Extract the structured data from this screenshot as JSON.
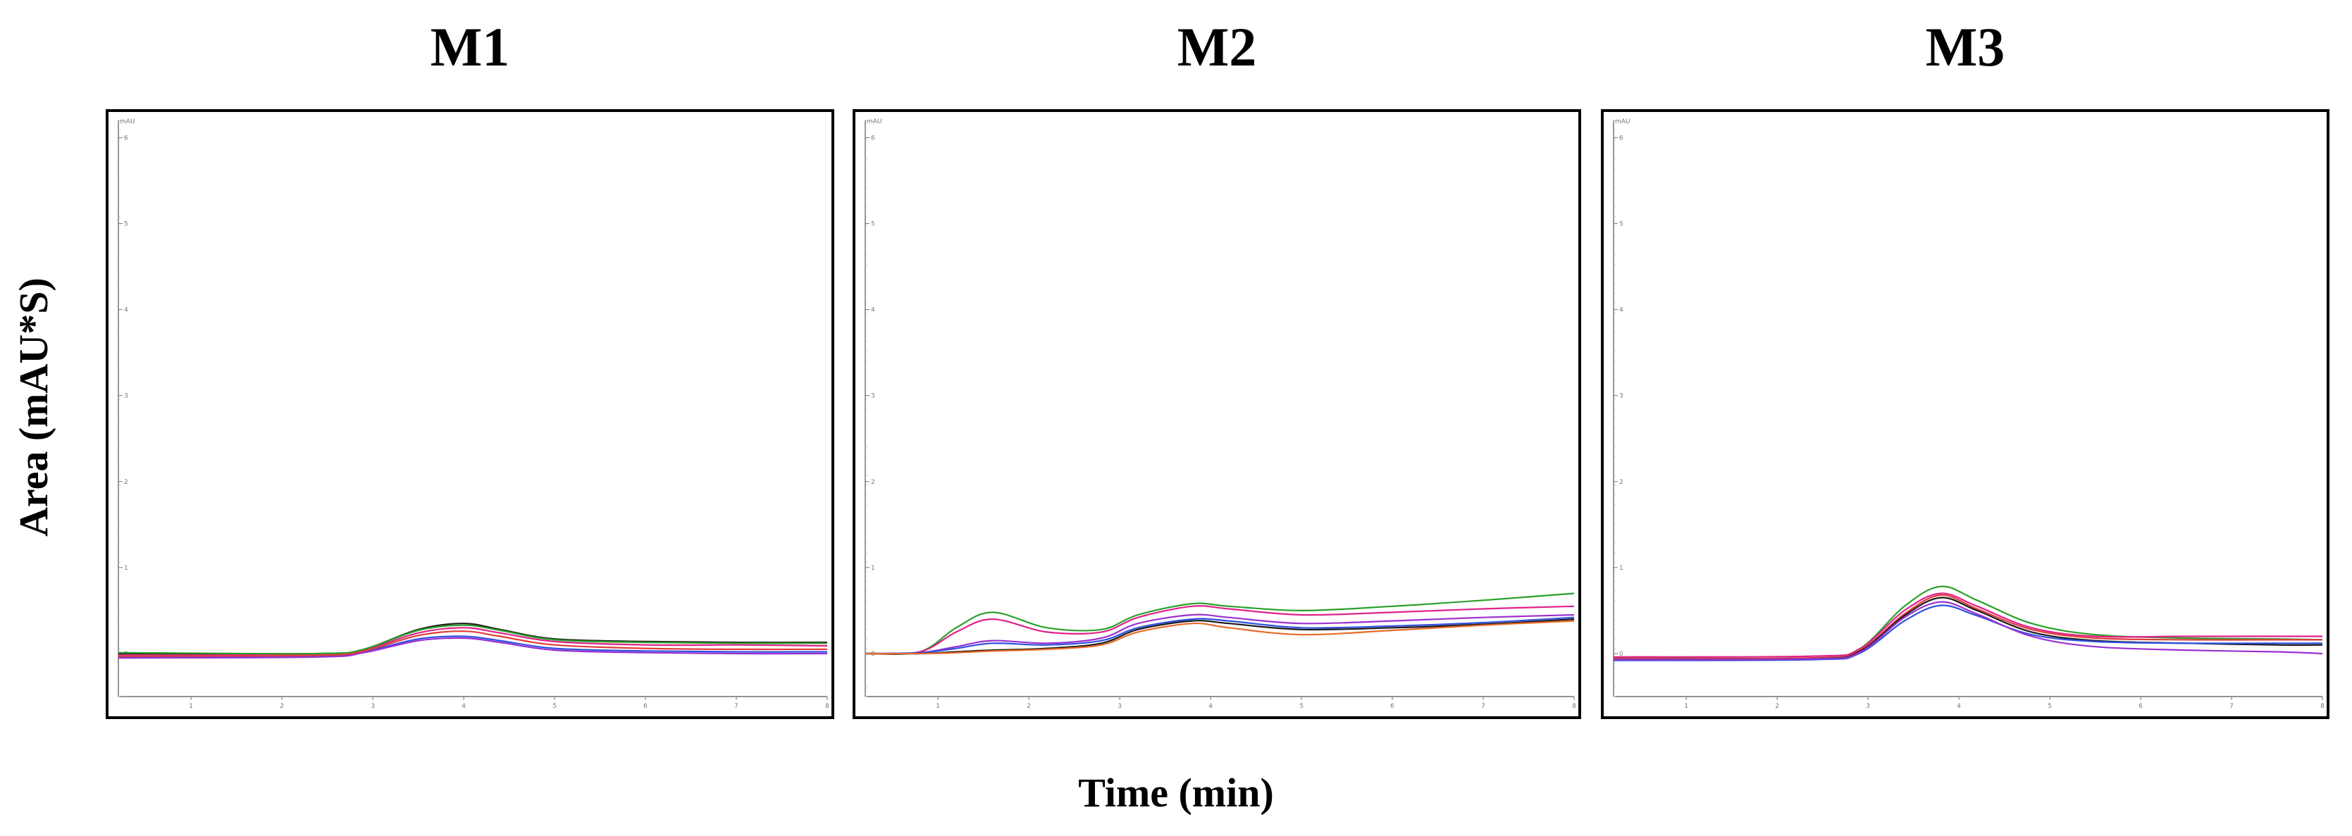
{
  "figure": {
    "ylabel": "Area (mAU*S)",
    "xlabel": "Time (min)"
  },
  "chart_data": [
    {
      "type": "line",
      "title": "M1",
      "xlabel": "Time (min)",
      "ylabel": "Area (mAU*S)",
      "xlim": [
        0.2,
        8
      ],
      "ylim": [
        -0.5,
        6.2
      ],
      "x_ticks": [
        "1",
        "2",
        "3",
        "4",
        "5",
        "6",
        "7",
        "8"
      ],
      "y_ticks": [
        "0",
        "1",
        "2",
        "3",
        "4",
        "5",
        "6"
      ],
      "y_axis_unit_label": "mAU",
      "grid": false,
      "series": [
        {
          "color": "#1a1a1a",
          "x": [
            0.2,
            2.4,
            2.9,
            3.5,
            4.0,
            4.4,
            5.0,
            6.0,
            7.0,
            8.0
          ],
          "y": [
            0.0,
            0.0,
            0.05,
            0.28,
            0.35,
            0.28,
            0.17,
            0.14,
            0.13,
            0.13
          ]
        },
        {
          "color": "#e0218a",
          "x": [
            0.2,
            2.4,
            2.9,
            3.5,
            4.0,
            4.4,
            5.0,
            6.0,
            7.0,
            8.0
          ],
          "y": [
            -0.02,
            -0.01,
            0.04,
            0.24,
            0.3,
            0.24,
            0.14,
            0.1,
            0.1,
            0.09
          ]
        },
        {
          "color": "#3050e0",
          "x": [
            0.2,
            2.4,
            2.9,
            3.5,
            4.0,
            4.4,
            5.0,
            6.0,
            7.0,
            8.0
          ],
          "y": [
            -0.04,
            -0.03,
            0.02,
            0.17,
            0.2,
            0.15,
            0.06,
            0.03,
            0.02,
            0.02
          ]
        },
        {
          "color": "#2aa02a",
          "x": [
            0.2,
            2.4,
            2.9,
            3.5,
            4.0,
            4.4,
            5.0,
            6.0,
            7.0,
            8.0
          ],
          "y": [
            0.01,
            0.0,
            0.05,
            0.27,
            0.33,
            0.27,
            0.16,
            0.13,
            0.12,
            0.12
          ]
        },
        {
          "color": "#e23b3b",
          "x": [
            0.2,
            2.4,
            2.9,
            3.5,
            4.0,
            4.4,
            5.0,
            6.0,
            7.0,
            8.0
          ],
          "y": [
            -0.03,
            -0.02,
            0.03,
            0.21,
            0.26,
            0.2,
            0.1,
            0.06,
            0.05,
            0.05
          ]
        },
        {
          "color": "#9b30d0",
          "x": [
            0.2,
            2.4,
            2.9,
            3.5,
            4.0,
            4.4,
            5.0,
            6.0,
            7.0,
            8.0
          ],
          "y": [
            -0.05,
            -0.04,
            0.01,
            0.15,
            0.18,
            0.13,
            0.04,
            0.01,
            0.0,
            0.0
          ]
        }
      ]
    },
    {
      "type": "line",
      "title": "M2",
      "xlabel": "Time (min)",
      "ylabel": "Area (mAU*S)",
      "xlim": [
        0.2,
        8
      ],
      "ylim": [
        -0.5,
        6.2
      ],
      "x_ticks": [
        "1",
        "2",
        "3",
        "4",
        "5",
        "6",
        "7",
        "8"
      ],
      "y_ticks": [
        "0",
        "1",
        "2",
        "3",
        "4",
        "5",
        "6"
      ],
      "y_axis_unit_label": "mAU",
      "grid": false,
      "series": [
        {
          "color": "#2aa02a",
          "x": [
            0.2,
            0.8,
            1.2,
            1.6,
            2.2,
            2.8,
            3.2,
            3.8,
            4.2,
            5.0,
            6.0,
            7.0,
            8.0
          ],
          "y": [
            0.0,
            0.02,
            0.3,
            0.48,
            0.3,
            0.28,
            0.45,
            0.58,
            0.55,
            0.5,
            0.55,
            0.62,
            0.7
          ]
        },
        {
          "color": "#e0218a",
          "x": [
            0.2,
            0.8,
            1.2,
            1.6,
            2.2,
            2.8,
            3.2,
            3.8,
            4.2,
            5.0,
            6.0,
            7.0,
            8.0
          ],
          "y": [
            0.0,
            0.02,
            0.25,
            0.4,
            0.25,
            0.25,
            0.42,
            0.55,
            0.52,
            0.45,
            0.48,
            0.52,
            0.55
          ]
        },
        {
          "color": "#9b30d0",
          "x": [
            0.2,
            0.8,
            1.2,
            1.6,
            2.2,
            2.8,
            3.2,
            3.8,
            4.2,
            5.0,
            6.0,
            7.0,
            8.0
          ],
          "y": [
            0.0,
            0.01,
            0.08,
            0.15,
            0.12,
            0.18,
            0.35,
            0.45,
            0.42,
            0.35,
            0.38,
            0.42,
            0.45
          ]
        },
        {
          "color": "#3050e0",
          "x": [
            0.2,
            0.8,
            1.2,
            1.6,
            2.2,
            2.8,
            3.2,
            3.8,
            4.2,
            5.0,
            6.0,
            7.0,
            8.0
          ],
          "y": [
            0.0,
            0.01,
            0.06,
            0.12,
            0.1,
            0.15,
            0.3,
            0.4,
            0.38,
            0.3,
            0.32,
            0.36,
            0.42
          ]
        },
        {
          "color": "#1a1a1a",
          "x": [
            0.2,
            0.8,
            1.2,
            1.6,
            2.2,
            2.8,
            3.2,
            3.8,
            4.2,
            5.0,
            6.0,
            7.0,
            8.0
          ],
          "y": [
            0.0,
            0.0,
            0.02,
            0.04,
            0.06,
            0.12,
            0.28,
            0.38,
            0.35,
            0.28,
            0.3,
            0.34,
            0.4
          ]
        },
        {
          "color": "#e86a2a",
          "x": [
            0.2,
            0.8,
            1.2,
            1.6,
            2.2,
            2.8,
            3.2,
            3.8,
            4.2,
            5.0,
            6.0,
            7.0,
            8.0
          ],
          "y": [
            0.0,
            0.0,
            0.01,
            0.03,
            0.05,
            0.1,
            0.25,
            0.35,
            0.3,
            0.22,
            0.27,
            0.33,
            0.38
          ]
        }
      ]
    },
    {
      "type": "line",
      "title": "M3",
      "xlabel": "Time (min)",
      "ylabel": "Area (mAU*S)",
      "xlim": [
        0.2,
        8
      ],
      "ylim": [
        -0.5,
        6.2
      ],
      "x_ticks": [
        "1",
        "2",
        "3",
        "4",
        "5",
        "6",
        "7",
        "8"
      ],
      "y_ticks": [
        "0",
        "1",
        "2",
        "3",
        "4",
        "5",
        "6"
      ],
      "y_axis_unit_label": "mAU",
      "grid": false,
      "series": [
        {
          "color": "#2aa02a",
          "x": [
            0.2,
            2.4,
            2.9,
            3.4,
            3.8,
            4.2,
            4.8,
            5.5,
            6.5,
            7.5,
            8.0
          ],
          "y": [
            -0.05,
            -0.05,
            0.05,
            0.55,
            0.78,
            0.62,
            0.35,
            0.22,
            0.18,
            0.17,
            0.16
          ]
        },
        {
          "color": "#e0218a",
          "x": [
            0.2,
            2.4,
            2.9,
            3.4,
            3.8,
            4.2,
            4.8,
            5.5,
            6.5,
            7.5,
            8.0
          ],
          "y": [
            -0.04,
            -0.03,
            0.05,
            0.5,
            0.7,
            0.55,
            0.3,
            0.2,
            0.2,
            0.2,
            0.2
          ]
        },
        {
          "color": "#e23b3b",
          "x": [
            0.2,
            2.4,
            2.9,
            3.4,
            3.8,
            4.2,
            4.8,
            5.5,
            6.5,
            7.5,
            8.0
          ],
          "y": [
            -0.06,
            -0.05,
            0.03,
            0.46,
            0.68,
            0.52,
            0.28,
            0.18,
            0.16,
            0.16,
            0.16
          ]
        },
        {
          "color": "#1a1a1a",
          "x": [
            0.2,
            2.4,
            2.9,
            3.4,
            3.8,
            4.2,
            4.8,
            5.5,
            6.5,
            7.5,
            8.0
          ],
          "y": [
            -0.07,
            -0.06,
            0.02,
            0.44,
            0.65,
            0.5,
            0.25,
            0.15,
            0.12,
            0.1,
            0.1
          ]
        },
        {
          "color": "#3050e0",
          "x": [
            0.2,
            2.4,
            2.9,
            3.4,
            3.8,
            4.2,
            4.8,
            5.5,
            6.5,
            7.5,
            8.0
          ],
          "y": [
            -0.08,
            -0.07,
            0.0,
            0.38,
            0.56,
            0.44,
            0.22,
            0.14,
            0.12,
            0.12,
            0.12
          ]
        },
        {
          "color": "#9b30d0",
          "x": [
            0.2,
            2.4,
            2.9,
            3.4,
            3.8,
            4.2,
            4.8,
            5.5,
            6.5,
            7.5,
            8.0
          ],
          "y": [
            -0.07,
            -0.06,
            0.01,
            0.42,
            0.6,
            0.46,
            0.2,
            0.08,
            0.04,
            0.02,
            0.0
          ]
        }
      ]
    }
  ]
}
